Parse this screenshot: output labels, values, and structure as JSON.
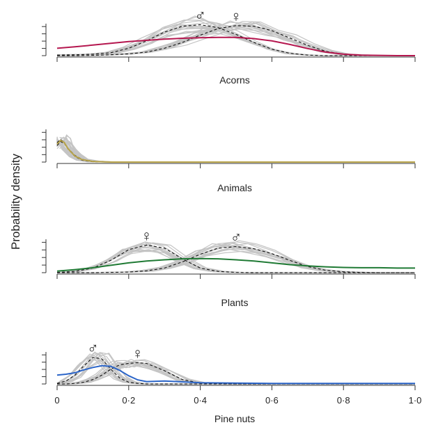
{
  "chart_data": {
    "type": "line",
    "ylabel": "Probability density",
    "xlabel": "Pine nuts",
    "xlim": [
      0,
      1.0
    ],
    "x_ticks": [
      "0",
      "0·2",
      "0·4",
      "0·6",
      "0·8",
      "1·0"
    ],
    "x_tick_values": [
      0,
      0.2,
      0.4,
      0.6,
      0.8,
      1.0
    ],
    "grid": false,
    "panels": [
      {
        "title": "Acorns",
        "series": [
          {
            "role": "population",
            "color": "#b5174f",
            "x": [
              0,
              0.05,
              0.1,
              0.15,
              0.2,
              0.25,
              0.3,
              0.35,
              0.4,
              0.45,
              0.5,
              0.55,
              0.6,
              0.65,
              0.7,
              0.75,
              0.8,
              0.85,
              0.9,
              0.95,
              1.0
            ],
            "y": [
              0.25,
              0.3,
              0.36,
              0.42,
              0.48,
              0.52,
              0.56,
              0.59,
              0.61,
              0.62,
              0.62,
              0.58,
              0.5,
              0.38,
              0.24,
              0.12,
              0.05,
              0.02,
              0.01,
              0,
              0
            ]
          },
          {
            "role": "male",
            "dashed": true,
            "symbol": "♂",
            "x": [
              0,
              0.05,
              0.1,
              0.15,
              0.2,
              0.25,
              0.3,
              0.35,
              0.4,
              0.45,
              0.5,
              0.55,
              0.6,
              0.65,
              0.7,
              0.75,
              0.8,
              0.85,
              0.9,
              0.95,
              1.0
            ],
            "y": [
              0.02,
              0.03,
              0.05,
              0.1,
              0.25,
              0.5,
              0.8,
              1.0,
              1.05,
              0.95,
              0.72,
              0.45,
              0.22,
              0.08,
              0.02,
              0,
              0,
              0,
              0,
              0,
              0
            ]
          },
          {
            "role": "female",
            "dashed": true,
            "symbol": "♀",
            "x": [
              0,
              0.05,
              0.1,
              0.15,
              0.2,
              0.25,
              0.3,
              0.35,
              0.4,
              0.45,
              0.5,
              0.55,
              0.6,
              0.65,
              0.7,
              0.75,
              0.8,
              0.85,
              0.9,
              0.95,
              1.0
            ],
            "y": [
              0,
              0,
              0.01,
              0.03,
              0.06,
              0.12,
              0.25,
              0.45,
              0.7,
              0.92,
              1.02,
              1.0,
              0.85,
              0.6,
              0.35,
              0.15,
              0.05,
              0.02,
              0,
              0,
              0
            ]
          }
        ]
      },
      {
        "title": "Animals",
        "series": [
          {
            "role": "population",
            "color": "#b8a44a",
            "x": [
              0,
              0.01,
              0.02,
              0.03,
              0.05,
              0.07,
              0.1,
              0.15,
              0.2,
              0.3,
              0.5,
              0.7,
              1.0
            ],
            "y": [
              0.6,
              0.72,
              0.65,
              0.45,
              0.2,
              0.08,
              0.02,
              0,
              0,
              0,
              0,
              0,
              0
            ]
          },
          {
            "role": "male",
            "dashed": true,
            "x": [
              0,
              0.01,
              0.02,
              0.03,
              0.05,
              0.07,
              0.1,
              0.15,
              0.2,
              0.3,
              0.5,
              0.7,
              1.0
            ],
            "y": [
              0.65,
              0.75,
              0.66,
              0.44,
              0.18,
              0.06,
              0.01,
              0,
              0,
              0,
              0,
              0,
              0
            ]
          },
          {
            "role": "female",
            "dashed": true,
            "x": [
              0,
              0.01,
              0.02,
              0.03,
              0.05,
              0.07,
              0.1,
              0.15,
              0.2,
              0.3,
              0.5,
              0.7,
              1.0
            ],
            "y": [
              0.55,
              0.68,
              0.62,
              0.46,
              0.22,
              0.09,
              0.03,
              0,
              0,
              0,
              0,
              0,
              0
            ]
          }
        ]
      },
      {
        "title": "Plants",
        "series": [
          {
            "role": "population",
            "color": "#1f7a34",
            "x": [
              0,
              0.05,
              0.1,
              0.15,
              0.2,
              0.25,
              0.3,
              0.35,
              0.4,
              0.45,
              0.5,
              0.55,
              0.6,
              0.65,
              0.7,
              0.75,
              0.8,
              0.85,
              0.9,
              0.95,
              1.0
            ],
            "y": [
              0.05,
              0.1,
              0.16,
              0.24,
              0.32,
              0.38,
              0.42,
              0.45,
              0.46,
              0.45,
              0.42,
              0.38,
              0.32,
              0.26,
              0.22,
              0.19,
              0.17,
              0.16,
              0.16,
              0.15,
              0.15
            ]
          },
          {
            "role": "female",
            "dashed": true,
            "symbol": "♀",
            "x": [
              0,
              0.05,
              0.1,
              0.15,
              0.2,
              0.25,
              0.3,
              0.35,
              0.4,
              0.45,
              0.5,
              0.55,
              0.6,
              0.65,
              0.7,
              0.75,
              0.8,
              0.85,
              0.9,
              0.95,
              1.0
            ],
            "y": [
              0.01,
              0.04,
              0.15,
              0.4,
              0.75,
              0.9,
              0.8,
              0.45,
              0.15,
              0.04,
              0.01,
              0,
              0,
              0,
              0,
              0,
              0,
              0,
              0,
              0,
              0
            ]
          },
          {
            "role": "male",
            "dashed": true,
            "symbol": "♂",
            "x": [
              0,
              0.05,
              0.1,
              0.15,
              0.2,
              0.25,
              0.3,
              0.35,
              0.4,
              0.45,
              0.5,
              0.55,
              0.6,
              0.65,
              0.7,
              0.75,
              0.8,
              0.85,
              0.9,
              0.95,
              1.0
            ],
            "y": [
              0,
              0,
              0,
              0.01,
              0.02,
              0.06,
              0.15,
              0.35,
              0.6,
              0.8,
              0.85,
              0.78,
              0.62,
              0.4,
              0.2,
              0.08,
              0.03,
              0.01,
              0,
              0,
              0
            ]
          }
        ]
      },
      {
        "title": "",
        "series": [
          {
            "role": "population",
            "color": "#2a64c8",
            "x": [
              0,
              0.025,
              0.05,
              0.075,
              0.1,
              0.125,
              0.15,
              0.175,
              0.2,
              0.225,
              0.25,
              0.3,
              0.35,
              0.4,
              0.5,
              0.6,
              0.7,
              0.8,
              0.9,
              1.0
            ],
            "y": [
              0.3,
              0.33,
              0.38,
              0.48,
              0.56,
              0.62,
              0.6,
              0.46,
              0.28,
              0.14,
              0.08,
              0.1,
              0.07,
              0.04,
              0.03,
              0.02,
              0.02,
              0.02,
              0.02,
              0.02
            ]
          },
          {
            "role": "male",
            "dashed": true,
            "symbol": "♂",
            "x": [
              0,
              0.025,
              0.05,
              0.075,
              0.1,
              0.125,
              0.15,
              0.175,
              0.2,
              0.225,
              0.25,
              0.3,
              0.35,
              0.4,
              0.5,
              0.6,
              0.7,
              0.8,
              0.9,
              1.0
            ],
            "y": [
              0.02,
              0.1,
              0.3,
              0.62,
              0.9,
              0.85,
              0.5,
              0.2,
              0.06,
              0.02,
              0,
              0,
              0,
              0,
              0,
              0,
              0,
              0,
              0,
              0
            ]
          },
          {
            "role": "female",
            "dashed": true,
            "symbol": "♀",
            "x": [
              0,
              0.025,
              0.05,
              0.075,
              0.1,
              0.125,
              0.15,
              0.175,
              0.2,
              0.225,
              0.25,
              0.3,
              0.35,
              0.4,
              0.5,
              0.6,
              0.7,
              0.8,
              0.9,
              1.0
            ],
            "y": [
              0,
              0,
              0.02,
              0.06,
              0.15,
              0.3,
              0.5,
              0.65,
              0.7,
              0.72,
              0.7,
              0.45,
              0.15,
              0.03,
              0,
              0,
              0,
              0,
              0,
              0
            ]
          }
        ]
      }
    ]
  }
}
